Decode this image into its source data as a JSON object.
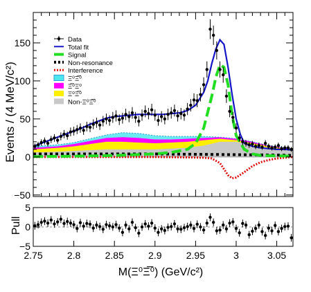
{
  "chart_data": [
    {
      "type": "line",
      "title": "",
      "xlabel": "M(Ξ⁰Ξ̅⁰) (GeV/c²)",
      "ylabel": "Events / (4 MeV/c²)",
      "xlim": [
        2.75,
        3.07
      ],
      "ylim": [
        -52,
        190
      ],
      "x_ticks": [
        2.75,
        2.8,
        2.85,
        2.9,
        2.95,
        3,
        3.05
      ],
      "x_tick_labels": [
        "2.75",
        "2.8",
        "2.85",
        "2.9",
        "2.95",
        "3",
        "3.05"
      ],
      "y_ticks": [
        -50,
        0,
        50,
        100,
        150
      ],
      "y_tick_labels": [
        "−50",
        "0",
        "50",
        "100",
        "150"
      ],
      "legend_position": "top-left",
      "legend": [
        {
          "label": "Data",
          "color": "#000000"
        },
        {
          "label": "Total fit",
          "color": "#1414c8"
        },
        {
          "label": "Signal",
          "color": "#22dd22"
        },
        {
          "label": "Non-resonance",
          "color": "#000000"
        },
        {
          "label": "Interference",
          "color": "#e01010"
        },
        {
          "label": "Ξ⁰Ξ̅⁰",
          "color": "#4ee6ee"
        },
        {
          "label": "Ξ̅⁰Ξ⁰",
          "color": "#ff00ff"
        },
        {
          "label": "Ξ⁰Ξ̅⁰",
          "color": "#ffee00"
        },
        {
          "label": "Non-Ξ⁰Ξ̅⁰",
          "color": "#c8c8c8"
        }
      ],
      "series": [
        {
          "name": "Data",
          "x": [
            2.752,
            2.756,
            2.76,
            2.764,
            2.768,
            2.772,
            2.776,
            2.78,
            2.784,
            2.788,
            2.792,
            2.796,
            2.8,
            2.804,
            2.808,
            2.812,
            2.816,
            2.82,
            2.824,
            2.828,
            2.832,
            2.836,
            2.84,
            2.844,
            2.848,
            2.852,
            2.856,
            2.86,
            2.864,
            2.868,
            2.872,
            2.876,
            2.88,
            2.884,
            2.888,
            2.892,
            2.896,
            2.9,
            2.904,
            2.908,
            2.912,
            2.916,
            2.92,
            2.924,
            2.928,
            2.932,
            2.936,
            2.94,
            2.944,
            2.948,
            2.952,
            2.956,
            2.96,
            2.964,
            2.968,
            2.972,
            2.976,
            2.98,
            2.984,
            2.988,
            2.992,
            2.996,
            3,
            3.004,
            3.008,
            3.012,
            3.016,
            3.02,
            3.024,
            3.028,
            3.032,
            3.036,
            3.04,
            3.044,
            3.048,
            3.052,
            3.056,
            3.06,
            3.064,
            3.068
          ],
          "values": [
            14,
            16,
            19,
            21,
            18,
            23,
            25,
            22,
            27,
            30,
            28,
            33,
            34,
            36,
            38,
            35,
            40,
            39,
            43,
            45,
            42,
            47,
            50,
            48,
            52,
            54,
            49,
            51,
            56,
            53,
            58,
            52,
            47,
            55,
            60,
            57,
            62,
            55,
            48,
            53,
            50,
            56,
            58,
            61,
            54,
            57,
            55,
            63,
            68,
            75,
            74,
            82,
            95,
            115,
            168,
            160,
            140,
            115,
            108,
            80,
            60,
            52,
            38,
            25,
            20,
            18,
            16,
            17,
            14,
            15,
            13,
            18,
            14,
            12,
            13,
            15,
            11,
            12,
            12,
            10
          ]
        },
        {
          "name": "Total fit",
          "x": [
            2.75,
            2.76,
            2.77,
            2.78,
            2.79,
            2.8,
            2.81,
            2.82,
            2.83,
            2.84,
            2.85,
            2.86,
            2.87,
            2.88,
            2.89,
            2.9,
            2.91,
            2.92,
            2.93,
            2.94,
            2.95,
            2.96,
            2.965,
            2.97,
            2.975,
            2.98,
            2.985,
            2.99,
            2.995,
            3,
            3.005,
            3.01,
            3.02,
            3.03,
            3.04,
            3.05,
            3.06,
            3.07
          ],
          "values": [
            14,
            18,
            22,
            26,
            30,
            34,
            38,
            43,
            47,
            51,
            53,
            54,
            55,
            56,
            56,
            56,
            56,
            57,
            58,
            61,
            68,
            85,
            100,
            123,
            142,
            154,
            148,
            118,
            82,
            50,
            30,
            18,
            14,
            12,
            11,
            10,
            10,
            9
          ]
        },
        {
          "name": "Signal",
          "x": [
            2.75,
            2.8,
            2.85,
            2.9,
            2.92,
            2.94,
            2.95,
            2.96,
            2.97,
            2.975,
            2.98,
            2.985,
            2.99,
            2.995,
            3,
            3.01,
            3.02,
            3.03,
            3.07
          ],
          "values": [
            0.5,
            1,
            2,
            4,
            6,
            10,
            18,
            38,
            80,
            105,
            121,
            118,
            95,
            55,
            28,
            10,
            4,
            2,
            1
          ]
        },
        {
          "name": "Non-resonance",
          "x": [
            2.75,
            2.8,
            2.85,
            2.9,
            2.95,
            3,
            3.05,
            3.07
          ],
          "values": [
            4,
            4,
            4,
            4,
            3.5,
            3,
            2.5,
            2
          ]
        },
        {
          "name": "Interference",
          "x": [
            2.75,
            2.8,
            2.85,
            2.9,
            2.94,
            2.96,
            2.97,
            2.98,
            2.985,
            2.99,
            2.995,
            3,
            3.01,
            3.02,
            3.03,
            3.04,
            3.05,
            3.06,
            3.07
          ],
          "values": [
            0,
            0,
            0,
            0,
            -0.5,
            -1,
            -2,
            -8,
            -16,
            -24,
            -28,
            -27,
            -20,
            -12,
            -7,
            -4,
            -2,
            -1,
            0
          ]
        },
        {
          "name": "Ξ̅⁰Ξ⁰",
          "x": [
            2.75,
            2.78,
            2.8,
            2.82,
            2.84,
            2.86,
            2.88,
            2.9,
            2.92,
            2.94,
            2.96,
            2.98,
            3,
            3.02,
            3.04,
            3.06,
            3.07
          ],
          "values": [
            14,
            16,
            19,
            24,
            29,
            32,
            31,
            28,
            27,
            27,
            27,
            26,
            24,
            20,
            15,
            12,
            11
          ]
        },
        {
          "name": "Ξ⁰Ξ̅⁰",
          "x": [
            2.75,
            2.78,
            2.8,
            2.82,
            2.84,
            2.86,
            2.88,
            2.9,
            2.92,
            2.94,
            2.96,
            2.98,
            3,
            3.02,
            3.04,
            3.06,
            3.07
          ],
          "values": [
            12,
            14,
            17,
            21,
            25,
            26,
            25,
            23,
            23,
            24,
            25,
            26,
            24,
            20,
            15,
            12,
            11
          ]
        },
        {
          "name": "Ξ⁰Ξ̅⁰",
          "x": [
            2.75,
            2.78,
            2.8,
            2.82,
            2.84,
            2.86,
            2.88,
            2.9,
            2.92,
            2.94,
            2.96,
            2.98,
            3,
            3.02,
            3.04,
            3.06,
            3.07
          ],
          "values": [
            10,
            12,
            14,
            17,
            20,
            20,
            19,
            18,
            19,
            20,
            22,
            24,
            22,
            18,
            14,
            11,
            10
          ]
        },
        {
          "name": "Non-Ξ⁰Ξ̅⁰",
          "x": [
            2.75,
            2.78,
            2.8,
            2.82,
            2.84,
            2.86,
            2.88,
            2.9,
            2.92,
            2.94,
            2.96,
            2.98,
            3,
            3.02,
            3.04,
            3.06,
            3.07
          ],
          "values": [
            6,
            7,
            8,
            9,
            10,
            10,
            10,
            10,
            11,
            12,
            15,
            20,
            20,
            16,
            12,
            10,
            9
          ]
        }
      ]
    },
    {
      "type": "scatter",
      "title": "",
      "xlabel": "M(Ξ⁰Ξ̅⁰) (GeV/c²)",
      "ylabel": "Pull",
      "xlim": [
        2.75,
        3.07
      ],
      "ylim": [
        -5,
        5
      ],
      "y_ticks": [
        -5,
        0,
        5
      ],
      "y_tick_labels": [
        "−5",
        "0",
        "5"
      ],
      "series": [
        {
          "name": "Pull",
          "x": [
            2.752,
            2.756,
            2.76,
            2.764,
            2.768,
            2.772,
            2.776,
            2.78,
            2.784,
            2.788,
            2.792,
            2.796,
            2.8,
            2.804,
            2.808,
            2.812,
            2.816,
            2.82,
            2.824,
            2.828,
            2.832,
            2.836,
            2.84,
            2.844,
            2.848,
            2.852,
            2.856,
            2.86,
            2.864,
            2.868,
            2.872,
            2.876,
            2.88,
            2.884,
            2.888,
            2.892,
            2.896,
            2.9,
            2.904,
            2.908,
            2.912,
            2.916,
            2.92,
            2.924,
            2.928,
            2.932,
            2.936,
            2.94,
            2.944,
            2.948,
            2.952,
            2.956,
            2.96,
            2.964,
            2.968,
            2.972,
            2.976,
            2.98,
            2.984,
            2.988,
            2.992,
            2.996,
            3,
            3.004,
            3.008,
            3.012,
            3.016,
            3.02,
            3.024,
            3.028,
            3.032,
            3.036,
            3.04,
            3.044,
            3.048,
            3.052,
            3.056,
            3.06,
            3.064,
            3.068
          ],
          "values": [
            0.3,
            0.6,
            1.2,
            1.5,
            1.0,
            1.8,
            0.8,
            1.3,
            2.0,
            0.9,
            1.4,
            1.0,
            0.6,
            -0.4,
            1.1,
            0.2,
            0.9,
            0.7,
            -0.3,
            0.5,
            0.1,
            -0.6,
            0.6,
            0.3,
            0.0,
            0.6,
            -0.3,
            -1.4,
            0.5,
            -0.5,
            1.2,
            -0.2,
            -1.6,
            0.0,
            0.8,
            0.2,
            1.0,
            -0.3,
            -1.4,
            -0.5,
            -0.9,
            -0.1,
            0.1,
            0.8,
            -0.5,
            -0.6,
            -0.2,
            0.1,
            0.5,
            -0.4,
            0.7,
            0.0,
            -0.8,
            1.0,
            2.5,
            1.2,
            -1.0,
            -0.8,
            0.5,
            -0.5,
            1.0,
            1.3,
            -0.4,
            -1.5,
            0.9,
            0.5,
            -2.0,
            -1.1,
            -0.4,
            0.5,
            -1.2,
            -2.2,
            -0.3,
            -1.0,
            0.4,
            -1.2,
            -0.4,
            0.1,
            0.2,
            -2.8
          ]
        }
      ]
    }
  ]
}
